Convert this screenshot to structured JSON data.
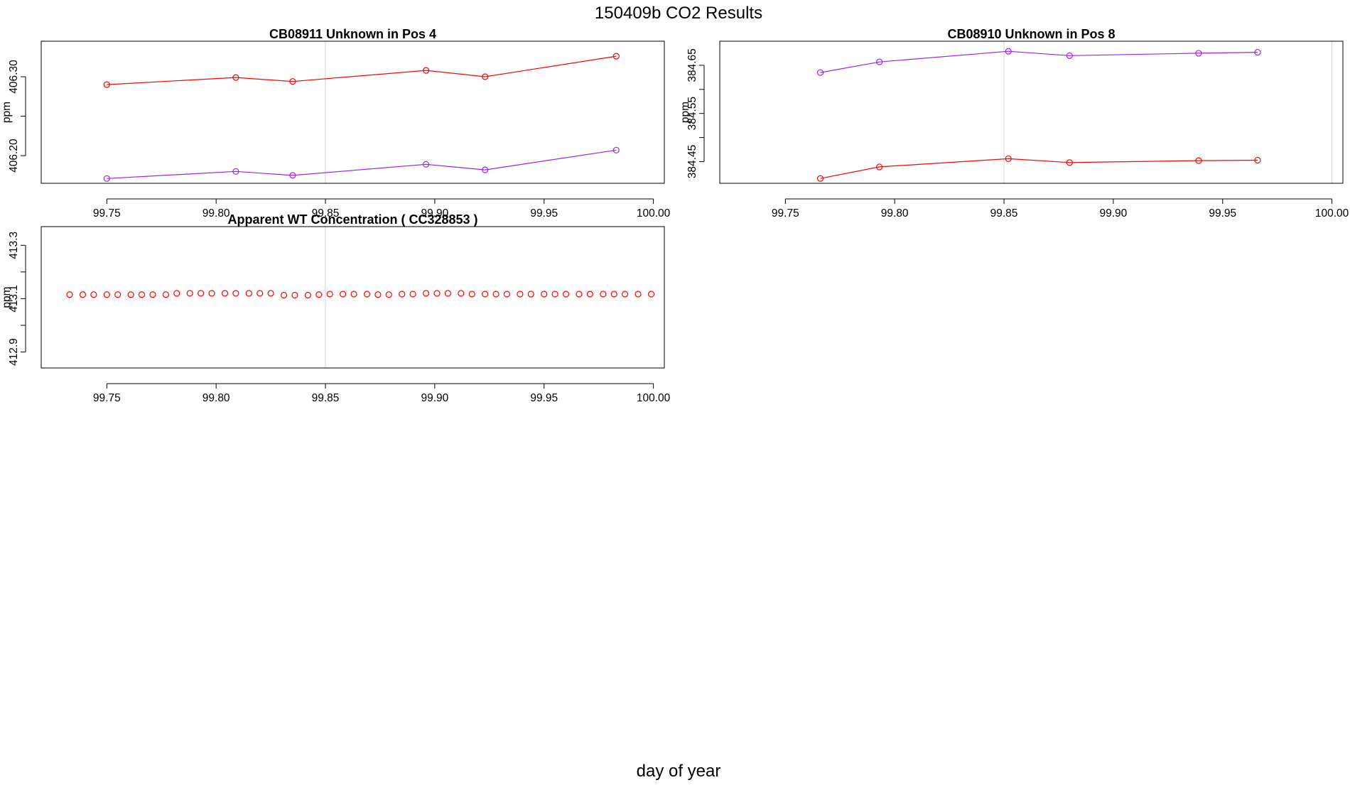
{
  "figure": {
    "title": "150409b  CO2 Results",
    "xlabel": "day of year"
  },
  "chart_data": [
    {
      "type": "line",
      "title": "CB08911    Unknown in Pos 4",
      "ylabel": "ppm",
      "xlabel": "",
      "xlim": [
        99.72,
        100.005
      ],
      "ylim": [
        406.165,
        406.345
      ],
      "xticks": [
        99.75,
        99.8,
        99.85,
        99.9,
        99.95,
        100.0
      ],
      "xtick_labels": [
        "99.75",
        "99.80",
        "99.85",
        "99.90",
        "99.95",
        "100.00"
      ],
      "yticks": [
        406.2,
        406.25,
        406.3
      ],
      "ytick_labels": [
        "406.20",
        "",
        "406.30"
      ],
      "vlines": [
        99.85
      ],
      "grid": false,
      "series": [
        {
          "color": "#ff0000",
          "marker": "circle",
          "line": true,
          "x": [
            99.75,
            99.809,
            99.835,
            99.896,
            99.923,
            99.983
          ],
          "y": [
            406.29,
            406.299,
            406.294,
            406.308,
            406.3,
            406.326
          ]
        },
        {
          "color": "#a020f0",
          "marker": "circle",
          "line": true,
          "x": [
            99.75,
            99.809,
            99.835,
            99.896,
            99.923,
            99.983
          ],
          "y": [
            406.171,
            406.18,
            406.175,
            406.189,
            406.182,
            406.207
          ]
        }
      ]
    },
    {
      "type": "line",
      "title": "CB08910    Unknown in Pos 8",
      "ylabel": "ppm",
      "xlabel": "",
      "xlim": [
        99.72,
        100.005
      ],
      "ylim": [
        384.405,
        384.7
      ],
      "xticks": [
        99.75,
        99.8,
        99.85,
        99.9,
        99.95,
        100.0
      ],
      "xtick_labels": [
        "99.75",
        "99.80",
        "99.85",
        "99.90",
        "99.95",
        "100.00"
      ],
      "yticks": [
        384.45,
        384.5,
        384.55,
        384.6,
        384.65
      ],
      "ytick_labels": [
        "384.45",
        "",
        "384.55",
        "",
        "384.65"
      ],
      "vlines": [
        99.85,
        100.0
      ],
      "grid": false,
      "series": [
        {
          "color": "#a020f0",
          "marker": "circle",
          "line": true,
          "x": [
            99.766,
            99.793,
            99.852,
            99.88,
            99.939,
            99.966
          ],
          "y": [
            384.635,
            384.657,
            384.679,
            384.67,
            384.675,
            384.677
          ]
        },
        {
          "color": "#ff0000",
          "marker": "circle",
          "line": true,
          "x": [
            99.766,
            99.793,
            99.852,
            99.88,
            99.939,
            99.966
          ],
          "y": [
            384.415,
            384.439,
            384.456,
            384.448,
            384.452,
            384.453
          ]
        }
      ]
    },
    {
      "type": "scatter",
      "title": "Apparent WT Concentration ( CC328853 )",
      "ylabel": "ppm",
      "xlabel": "",
      "xlim": [
        99.72,
        100.005
      ],
      "ylim": [
        412.84,
        413.37
      ],
      "xticks": [
        99.75,
        99.8,
        99.85,
        99.9,
        99.95,
        100.0
      ],
      "xtick_labels": [
        "99.75",
        "99.80",
        "99.85",
        "99.90",
        "99.95",
        "100.00"
      ],
      "yticks": [
        412.9,
        413.0,
        413.1,
        413.2,
        413.3
      ],
      "ytick_labels": [
        "412.9",
        "",
        "413.1",
        "",
        "413.3"
      ],
      "vlines": [
        99.85
      ],
      "grid": false,
      "series": [
        {
          "color": "#ff0000",
          "marker": "circle",
          "line": false,
          "x": [
            99.733,
            99.739,
            99.744,
            99.75,
            99.755,
            99.761,
            99.766,
            99.771,
            99.777,
            99.782,
            99.788,
            99.793,
            99.798,
            99.804,
            99.809,
            99.815,
            99.82,
            99.825,
            99.831,
            99.836,
            99.842,
            99.847,
            99.852,
            99.858,
            99.863,
            99.869,
            99.874,
            99.879,
            99.885,
            99.89,
            99.896,
            99.901,
            99.906,
            99.912,
            99.917,
            99.923,
            99.928,
            99.933,
            99.939,
            99.944,
            99.95,
            99.955,
            99.96,
            99.966,
            99.971,
            99.977,
            99.982,
            99.987,
            99.993,
            99.999
          ],
          "y": [
            413.115,
            413.115,
            413.115,
            413.115,
            413.115,
            413.115,
            413.115,
            413.115,
            413.115,
            413.12,
            413.12,
            413.12,
            413.12,
            413.12,
            413.12,
            413.12,
            413.12,
            413.12,
            413.113,
            413.113,
            413.113,
            413.115,
            413.117,
            413.117,
            413.117,
            413.117,
            413.115,
            413.115,
            413.117,
            413.117,
            413.12,
            413.12,
            413.12,
            413.12,
            413.117,
            413.117,
            413.117,
            413.117,
            413.117,
            413.117,
            413.117,
            413.117,
            413.117,
            413.117,
            413.117,
            413.117,
            413.117,
            413.117,
            413.117,
            413.117
          ]
        }
      ]
    }
  ]
}
